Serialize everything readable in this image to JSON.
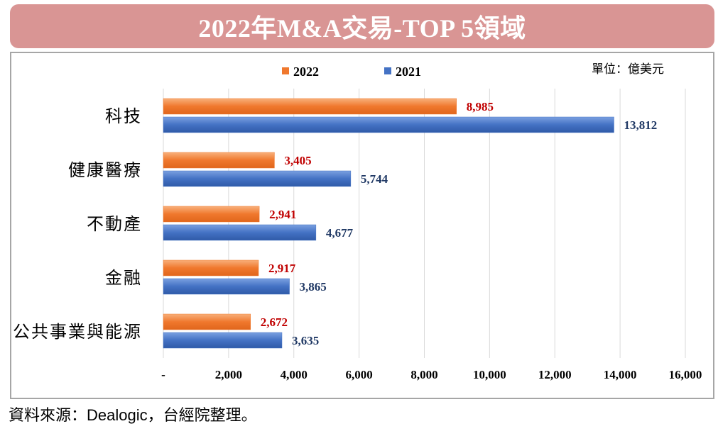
{
  "title": "2022年M&A交易-TOP 5領域",
  "unit_label": "單位：億美元",
  "source": "資料來源：Dealogic，台經院整理。",
  "chart_data": {
    "type": "bar",
    "orientation": "horizontal",
    "title": "2022年M&A交易-TOP 5領域",
    "categories": [
      "科技",
      "健康醫療",
      "不動產",
      "金融",
      "公共事業與能源"
    ],
    "series": [
      {
        "name": "2022",
        "color": "#f0782d",
        "label_color": "#c00000",
        "values": [
          8985,
          3405,
          2941,
          2917,
          2672
        ]
      },
      {
        "name": "2021",
        "color": "#4472c4",
        "label_color": "#1f3864",
        "values": [
          13812,
          5744,
          4677,
          3865,
          3635
        ]
      }
    ],
    "value_labels": [
      [
        "8,985",
        "3,405",
        "2,941",
        "2,917",
        "2,672"
      ],
      [
        "13,812",
        "5,744",
        "4,677",
        "3,865",
        "3,635"
      ]
    ],
    "xlim": [
      0,
      16000
    ],
    "xticks": [
      0,
      2000,
      4000,
      6000,
      8000,
      10000,
      12000,
      14000,
      16000
    ],
    "xtick_labels": [
      "-",
      "2,000",
      "4,000",
      "6,000",
      "8,000",
      "10,000",
      "12,000",
      "14,000",
      "16,000"
    ],
    "legend": "top",
    "grid": true
  }
}
